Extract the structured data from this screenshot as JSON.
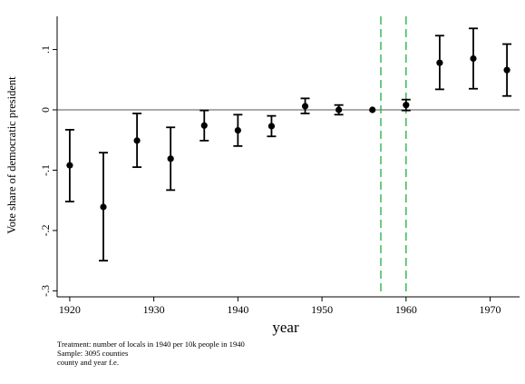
{
  "chart_data": {
    "type": "scatter",
    "xlabel": "year",
    "ylabel": "Vote share of democratic president",
    "xlim": [
      1918.5,
      1973.5
    ],
    "ylim": [
      -0.31,
      0.155
    ],
    "xticks": [
      1920,
      1930,
      1940,
      1950,
      1960,
      1970
    ],
    "xtick_labels": [
      "1920",
      "1930",
      "1940",
      "1950",
      "1960",
      "1970"
    ],
    "yticks": [
      0.1,
      0,
      -0.1,
      -0.2,
      -0.3
    ],
    "ytick_labels": [
      ".1",
      "0",
      "-.1",
      "-.2",
      "-.3"
    ],
    "reference_line_y": 0,
    "vertical_lines_x": [
      1957,
      1960
    ],
    "vertical_line_color": "#2db34a",
    "marker_color": "#000000",
    "grid": false,
    "points": [
      {
        "x": 1920,
        "y": -0.092,
        "lo": -0.152,
        "hi": -0.033
      },
      {
        "x": 1924,
        "y": -0.161,
        "lo": -0.25,
        "hi": -0.071
      },
      {
        "x": 1928,
        "y": -0.051,
        "lo": -0.095,
        "hi": -0.006
      },
      {
        "x": 1932,
        "y": -0.081,
        "lo": -0.133,
        "hi": -0.029
      },
      {
        "x": 1936,
        "y": -0.026,
        "lo": -0.051,
        "hi": -0.001
      },
      {
        "x": 1940,
        "y": -0.034,
        "lo": -0.06,
        "hi": -0.008
      },
      {
        "x": 1944,
        "y": -0.027,
        "lo": -0.044,
        "hi": -0.01
      },
      {
        "x": 1948,
        "y": 0.006,
        "lo": -0.006,
        "hi": 0.019
      },
      {
        "x": 1952,
        "y": 0.0,
        "lo": -0.008,
        "hi": 0.008
      },
      {
        "x": 1956,
        "y": 0.0,
        "lo": 0.0,
        "hi": 0.0
      },
      {
        "x": 1960,
        "y": 0.008,
        "lo": -0.001,
        "hi": 0.017
      },
      {
        "x": 1964,
        "y": 0.078,
        "lo": 0.034,
        "hi": 0.123
      },
      {
        "x": 1968,
        "y": 0.085,
        "lo": 0.035,
        "hi": 0.135
      },
      {
        "x": 1972,
        "y": 0.066,
        "lo": 0.023,
        "hi": 0.109
      }
    ]
  },
  "notes": [
    "Treatment: number of locals in 1940 per 10k people in 1940",
    "Sample: 3095 counties",
    "county and year f.e."
  ]
}
